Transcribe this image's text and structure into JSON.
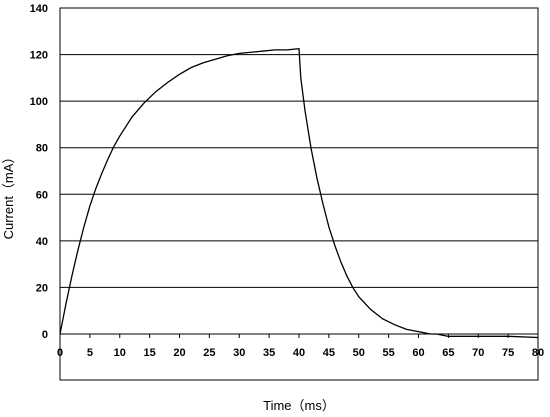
{
  "chart_data": {
    "type": "line",
    "title": "",
    "xlabel": "Time（ms）",
    "ylabel": "Current（mA）",
    "xlim": [
      0,
      80
    ],
    "ylim": [
      0,
      140
    ],
    "x_ticks": [
      0,
      5,
      10,
      15,
      20,
      25,
      30,
      35,
      40,
      45,
      50,
      55,
      60,
      65,
      70,
      75,
      80
    ],
    "y_ticks": [
      0,
      20,
      40,
      60,
      80,
      100,
      120,
      140
    ],
    "grid": "horizontal",
    "legend": "none",
    "line_color": "#000000",
    "series": [
      {
        "x": [
          0,
          1,
          2,
          3,
          4,
          5,
          6,
          7,
          8,
          9,
          10,
          12,
          14,
          16,
          18,
          20,
          22,
          24,
          26,
          28,
          30,
          32,
          34,
          36,
          38,
          40,
          40.3,
          41,
          42,
          43,
          44,
          45,
          46,
          47,
          48,
          49,
          50,
          52,
          54,
          56,
          58,
          60,
          62,
          63,
          65,
          70,
          75,
          80
        ],
        "y": [
          0,
          13,
          25,
          36,
          46,
          55,
          62.5,
          69,
          75,
          80.5,
          85,
          93,
          99,
          104,
          108,
          111.5,
          114.5,
          116.5,
          118,
          119.5,
          120.5,
          121,
          121.5,
          122,
          122,
          122.5,
          110,
          96,
          80,
          67,
          56,
          46,
          38,
          31,
          25,
          20,
          16,
          10.5,
          6.5,
          4,
          2,
          1,
          0,
          0,
          -1,
          -1,
          -1,
          -1.5
        ]
      }
    ]
  }
}
